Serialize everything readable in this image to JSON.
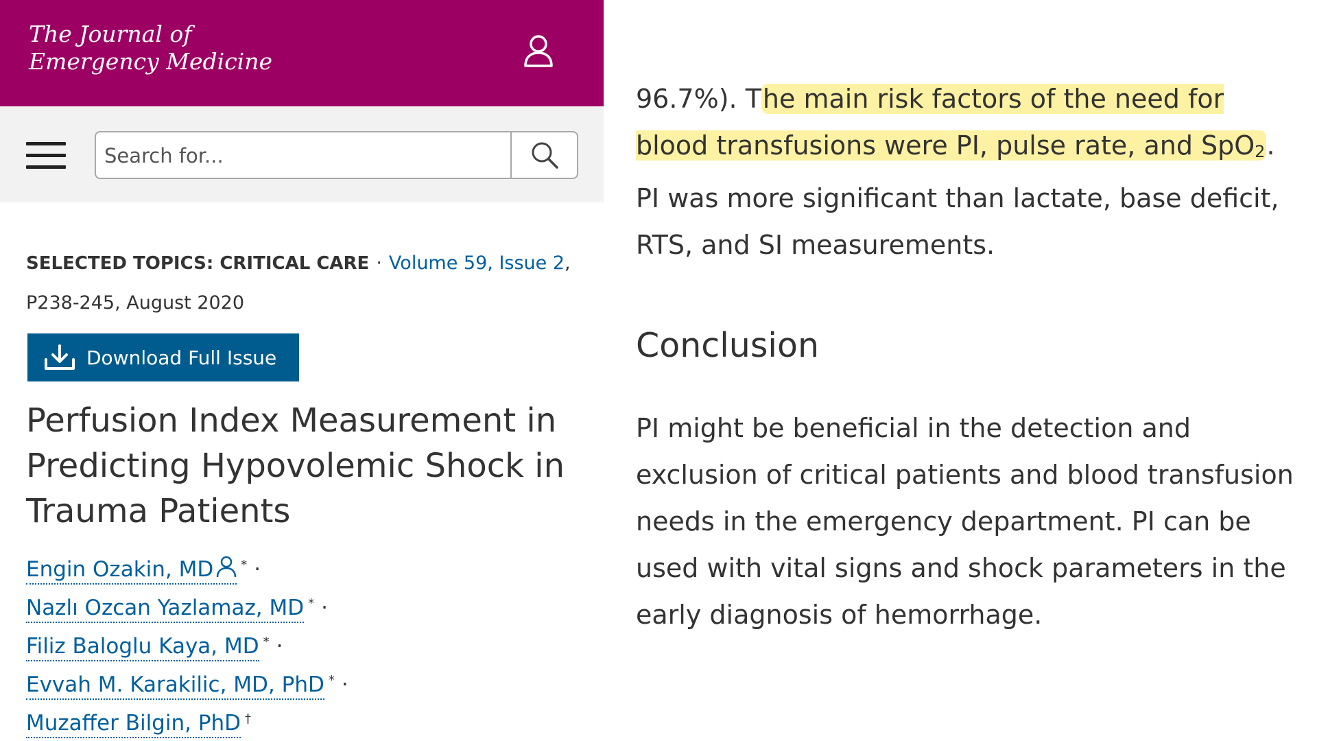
{
  "masthead": {
    "title_line1": "The Journal of",
    "title_line2": "Emergency Medicine",
    "brand_color": "#9c0062"
  },
  "search": {
    "placeholder": "Search for..."
  },
  "article_meta": {
    "topic": "SELECTED TOPICS: CRITICAL CARE",
    "separator": "·",
    "volume_issue": "Volume 59, Issue 2",
    "pages_date": ", P238-245, August 2020"
  },
  "download": {
    "label": "Download Full Issue"
  },
  "article": {
    "title": "Perfusion Index Measurement in Predicting Hypovolemic Shock in Trauma Patients"
  },
  "authors": [
    {
      "name": "Engin Ozakin, MD",
      "mark": "*",
      "sep": "·"
    },
    {
      "name": "Nazlı Ozcan Yazlamaz, MD",
      "mark": "*",
      "sep": "·"
    },
    {
      "name": "Filiz Baloglu Kaya, MD",
      "mark": "*",
      "sep": "·"
    },
    {
      "name": "Evvah M. Karakilic, MD, PhD",
      "mark": "*",
      "sep": "·"
    },
    {
      "name": "Muzaffer Bilgin, PhD",
      "mark": "†",
      "sep": ""
    }
  ],
  "results": {
    "lead": "96.7%). T",
    "highlight_1": "he main risk factors of the need for blood transfusions were PI, pulse rate, and SpO",
    "subscript": "2",
    "tail": ". PI was more significant than lactate, base deficit, RTS, and SI measurements.",
    "highlight_color": "#fdf1a3"
  },
  "conclusion": {
    "heading": "Conclusion",
    "text": "PI might be beneficial in the detection and exclusion of critical patients and blood transfusion needs in the emergency department. PI can be used with vital signs and shock parameters in the early diagnosis of hemorrhage."
  }
}
